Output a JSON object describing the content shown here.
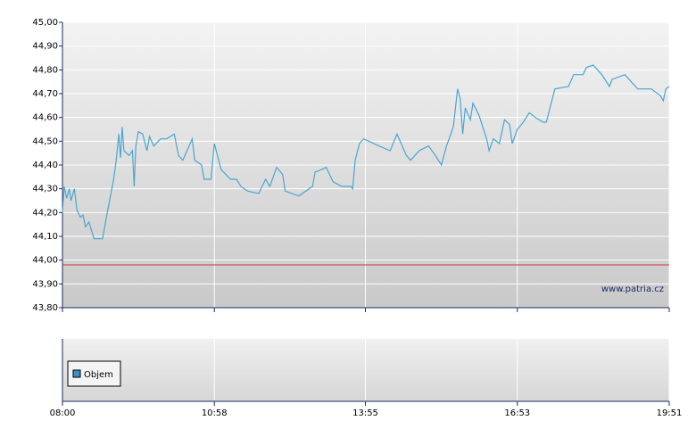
{
  "chart_data": {
    "type": "line",
    "x": [
      "08:00",
      "08:02",
      "08:05",
      "08:08",
      "08:10",
      "08:14",
      "08:17",
      "08:21",
      "08:24",
      "08:27",
      "08:31",
      "08:37",
      "08:47",
      "08:52",
      "09:00",
      "09:03",
      "09:06",
      "09:08",
      "09:10",
      "09:12",
      "09:18",
      "09:22",
      "09:24",
      "09:26",
      "09:29",
      "09:34",
      "09:39",
      "09:42",
      "09:47",
      "09:55",
      "10:02",
      "10:11",
      "10:16",
      "10:21",
      "10:26",
      "10:32",
      "10:35",
      "10:43",
      "10:46",
      "10:54",
      "10:58",
      "11:06",
      "11:17",
      "11:24",
      "11:29",
      "11:37",
      "11:50",
      "11:58",
      "12:03",
      "12:11",
      "12:18",
      "12:21",
      "12:37",
      "12:53",
      "12:56",
      "13:03",
      "13:09",
      "13:17",
      "13:27",
      "13:38",
      "13:40",
      "13:43",
      "13:48",
      "13:53",
      "14:11",
      "14:24",
      "14:32",
      "14:43",
      "14:48",
      "14:58",
      "15:09",
      "15:17",
      "15:24",
      "15:30",
      "15:38",
      "15:43",
      "15:46",
      "15:49",
      "15:52",
      "15:58",
      "16:01",
      "16:08",
      "16:17",
      "16:20",
      "16:25",
      "16:32",
      "16:38",
      "16:44",
      "16:47",
      "16:53",
      "17:00",
      "17:07",
      "17:14",
      "17:23",
      "17:27",
      "17:37",
      "17:53",
      "17:59",
      "18:10",
      "18:14",
      "18:22",
      "18:32",
      "18:41",
      "18:44",
      "18:59",
      "19:14",
      "19:30",
      "19:41",
      "19:44",
      "19:47",
      "19:51"
    ],
    "series": [
      {
        "color": "#4aa6cf",
        "values": [
          44.2,
          44.31,
          44.26,
          44.3,
          44.25,
          44.3,
          44.21,
          44.18,
          44.19,
          44.14,
          44.16,
          44.09,
          44.09,
          44.19,
          44.34,
          44.42,
          44.53,
          44.43,
          44.56,
          44.46,
          44.44,
          44.46,
          44.31,
          44.48,
          44.54,
          44.53,
          44.46,
          44.52,
          44.48,
          44.51,
          44.51,
          44.53,
          44.44,
          44.42,
          44.46,
          44.51,
          44.42,
          44.4,
          44.34,
          44.34,
          44.49,
          44.38,
          44.34,
          44.34,
          44.31,
          44.29,
          44.28,
          44.34,
          44.31,
          44.39,
          44.36,
          44.29,
          44.27,
          44.31,
          44.37,
          44.38,
          44.39,
          44.33,
          44.31,
          44.31,
          44.3,
          44.42,
          44.49,
          44.51,
          44.48,
          44.46,
          44.53,
          44.44,
          44.42,
          44.46,
          44.48,
          44.44,
          44.4,
          44.48,
          44.56,
          44.72,
          44.68,
          44.53,
          44.64,
          44.59,
          44.66,
          44.61,
          44.51,
          44.46,
          44.51,
          44.49,
          44.59,
          44.57,
          44.49,
          44.55,
          44.58,
          44.62,
          44.6,
          44.58,
          44.58,
          44.72,
          44.73,
          44.78,
          44.78,
          44.81,
          44.82,
          44.78,
          44.73,
          44.76,
          44.78,
          44.72,
          44.72,
          44.69,
          44.67,
          44.72,
          44.73
        ]
      }
    ],
    "xlim": [
      "08:00",
      "19:51"
    ],
    "xticks": [
      "08:00",
      "10:58",
      "13:55",
      "16:53",
      "19:51"
    ],
    "ylim": [
      43.8,
      45.0
    ],
    "yticks": [
      {
        "value": 43.8,
        "label": "43,80"
      },
      {
        "value": 43.9,
        "label": "43,90"
      },
      {
        "value": 44.0,
        "label": "44,00"
      },
      {
        "value": 44.1,
        "label": "44,10"
      },
      {
        "value": 44.2,
        "label": "44,20"
      },
      {
        "value": 44.3,
        "label": "44,30"
      },
      {
        "value": 44.4,
        "label": "44,40"
      },
      {
        "value": 44.5,
        "label": "44,50"
      },
      {
        "value": 44.6,
        "label": "44,60"
      },
      {
        "value": 44.7,
        "label": "44,70"
      },
      {
        "value": 44.8,
        "label": "44,80"
      },
      {
        "value": 44.9,
        "label": "44,90"
      },
      {
        "value": 45.0,
        "label": "45,00"
      }
    ],
    "reference_line": {
      "value": 43.98,
      "color": "#cc3333"
    },
    "grid": true,
    "watermark": "www.patria.cz",
    "volume_legend": {
      "label": "Objem",
      "color": "#3a8fc8"
    }
  }
}
